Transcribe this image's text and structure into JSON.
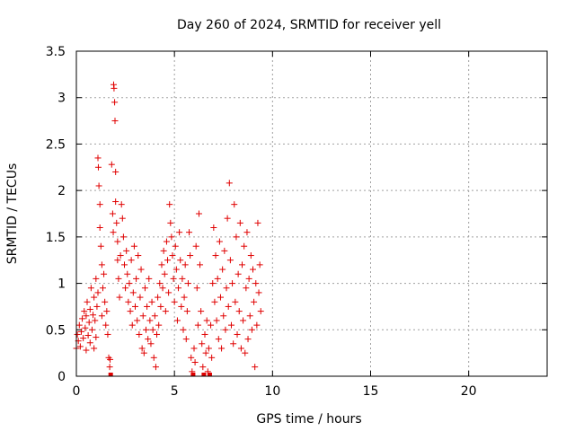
{
  "chart_data": {
    "type": "scatter",
    "title": "Day 260 of 2024, SRMTID for receiver yell",
    "xlabel": "GPS time / hours",
    "ylabel": "SRMTID / TECUs",
    "xlim": [
      0,
      24
    ],
    "ylim": [
      0,
      3.5
    ],
    "xticks": [
      0,
      5,
      10,
      15,
      20
    ],
    "yticks": [
      0,
      0.5,
      1,
      1.5,
      2,
      2.5,
      3,
      3.5
    ],
    "xtick_labels": [
      "0",
      "5",
      "10",
      "15",
      "20"
    ],
    "ytick_labels": [
      "0",
      "0.5",
      "1",
      "1.5",
      "2",
      "2.5",
      "3",
      "3.5"
    ],
    "grid": true,
    "marker": "plus",
    "color": "#e00000",
    "series": [
      {
        "name": "SRMTID",
        "points": [
          [
            0.0,
            0.3
          ],
          [
            0.05,
            0.45
          ],
          [
            0.1,
            0.38
          ],
          [
            0.15,
            0.55
          ],
          [
            0.2,
            0.32
          ],
          [
            0.25,
            0.48
          ],
          [
            0.3,
            0.62
          ],
          [
            0.35,
            0.41
          ],
          [
            0.4,
            0.7
          ],
          [
            0.45,
            0.52
          ],
          [
            0.5,
            0.28
          ],
          [
            0.5,
            0.65
          ],
          [
            0.55,
            0.8
          ],
          [
            0.6,
            0.44
          ],
          [
            0.65,
            0.58
          ],
          [
            0.7,
            0.36
          ],
          [
            0.7,
            0.72
          ],
          [
            0.75,
            0.95
          ],
          [
            0.8,
            0.5
          ],
          [
            0.85,
            0.66
          ],
          [
            0.9,
            0.3
          ],
          [
            0.9,
            0.85
          ],
          [
            0.95,
            0.6
          ],
          [
            1.0,
            1.05
          ],
          [
            1.0,
            0.42
          ],
          [
            1.05,
            0.75
          ],
          [
            1.1,
            0.9
          ],
          [
            1.1,
            2.35
          ],
          [
            1.12,
            2.25
          ],
          [
            1.15,
            2.05
          ],
          [
            1.2,
            1.85
          ],
          [
            1.2,
            1.6
          ],
          [
            1.25,
            1.4
          ],
          [
            1.3,
            1.2
          ],
          [
            1.3,
            0.65
          ],
          [
            1.35,
            0.95
          ],
          [
            1.4,
            1.1
          ],
          [
            1.45,
            0.8
          ],
          [
            1.5,
            0.55
          ],
          [
            1.55,
            0.7
          ],
          [
            1.6,
            0.45
          ],
          [
            1.65,
            0.2
          ],
          [
            1.7,
            0.1
          ],
          [
            1.72,
            0.18
          ],
          [
            1.75,
            0.0
          ],
          [
            1.8,
            2.28
          ],
          [
            1.85,
            1.75
          ],
          [
            1.88,
            1.55
          ],
          [
            1.9,
            3.14
          ],
          [
            1.92,
            3.1
          ],
          [
            1.95,
            2.95
          ],
          [
            1.97,
            2.75
          ],
          [
            2.0,
            2.2
          ],
          [
            2.0,
            1.88
          ],
          [
            2.05,
            1.65
          ],
          [
            2.1,
            1.45
          ],
          [
            2.1,
            1.25
          ],
          [
            2.15,
            1.05
          ],
          [
            2.2,
            0.85
          ],
          [
            2.25,
            1.3
          ],
          [
            2.3,
            1.85
          ],
          [
            2.35,
            1.7
          ],
          [
            2.4,
            1.5
          ],
          [
            2.45,
            1.2
          ],
          [
            2.5,
            0.95
          ],
          [
            2.55,
            1.35
          ],
          [
            2.6,
            1.1
          ],
          [
            2.65,
            0.8
          ],
          [
            2.7,
            1.0
          ],
          [
            2.75,
            0.7
          ],
          [
            2.8,
            1.25
          ],
          [
            2.85,
            0.55
          ],
          [
            2.9,
            0.9
          ],
          [
            2.95,
            1.4
          ],
          [
            3.0,
            0.75
          ],
          [
            3.05,
            1.05
          ],
          [
            3.1,
            0.6
          ],
          [
            3.15,
            1.3
          ],
          [
            3.2,
            0.45
          ],
          [
            3.25,
            0.85
          ],
          [
            3.3,
            1.15
          ],
          [
            3.35,
            0.3
          ],
          [
            3.4,
            0.65
          ],
          [
            3.45,
            0.25
          ],
          [
            3.5,
            0.95
          ],
          [
            3.55,
            0.5
          ],
          [
            3.6,
            0.75
          ],
          [
            3.65,
            0.4
          ],
          [
            3.7,
            1.05
          ],
          [
            3.75,
            0.6
          ],
          [
            3.8,
            0.35
          ],
          [
            3.85,
            0.8
          ],
          [
            3.9,
            0.5
          ],
          [
            3.95,
            0.2
          ],
          [
            4.0,
            0.65
          ],
          [
            4.05,
            0.1
          ],
          [
            4.1,
            0.45
          ],
          [
            4.15,
            0.85
          ],
          [
            4.2,
            0.55
          ],
          [
            4.25,
            1.0
          ],
          [
            4.3,
            0.75
          ],
          [
            4.35,
            1.2
          ],
          [
            4.4,
            0.95
          ],
          [
            4.45,
            1.35
          ],
          [
            4.5,
            1.1
          ],
          [
            4.55,
            0.7
          ],
          [
            4.6,
            1.45
          ],
          [
            4.65,
            1.25
          ],
          [
            4.7,
            0.9
          ],
          [
            4.75,
            1.85
          ],
          [
            4.8,
            1.65
          ],
          [
            4.85,
            1.5
          ],
          [
            4.9,
            1.3
          ],
          [
            4.95,
            1.05
          ],
          [
            5.0,
            0.8
          ],
          [
            5.05,
            1.4
          ],
          [
            5.1,
            1.15
          ],
          [
            5.15,
            0.6
          ],
          [
            5.2,
            0.95
          ],
          [
            5.25,
            1.55
          ],
          [
            5.3,
            1.25
          ],
          [
            5.35,
            0.75
          ],
          [
            5.4,
            1.05
          ],
          [
            5.45,
            0.5
          ],
          [
            5.5,
            0.85
          ],
          [
            5.55,
            1.2
          ],
          [
            5.6,
            0.4
          ],
          [
            5.65,
            0.7
          ],
          [
            5.7,
            1.0
          ],
          [
            5.75,
            1.55
          ],
          [
            5.8,
            1.3
          ],
          [
            5.85,
            0.2
          ],
          [
            5.9,
            0.05
          ],
          [
            5.95,
            0.0
          ],
          [
            6.0,
            0.3
          ],
          [
            6.05,
            0.15
          ],
          [
            6.1,
            1.4
          ],
          [
            6.15,
            0.95
          ],
          [
            6.2,
            0.55
          ],
          [
            6.25,
            1.75
          ],
          [
            6.3,
            1.2
          ],
          [
            6.35,
            0.7
          ],
          [
            6.4,
            0.35
          ],
          [
            6.45,
            0.1
          ],
          [
            6.5,
            0.0
          ],
          [
            6.55,
            0.45
          ],
          [
            6.6,
            0.25
          ],
          [
            6.65,
            0.6
          ],
          [
            6.7,
            0.05
          ],
          [
            6.75,
            0.3
          ],
          [
            6.8,
            0.0
          ],
          [
            6.85,
            0.55
          ],
          [
            6.9,
            0.2
          ],
          [
            6.95,
            1.0
          ],
          [
            7.0,
            1.6
          ],
          [
            7.05,
            0.8
          ],
          [
            7.1,
            1.3
          ],
          [
            7.15,
            0.6
          ],
          [
            7.2,
            1.05
          ],
          [
            7.25,
            0.4
          ],
          [
            7.3,
            1.45
          ],
          [
            7.35,
            0.85
          ],
          [
            7.4,
            0.3
          ],
          [
            7.45,
            1.15
          ],
          [
            7.5,
            0.65
          ],
          [
            7.55,
            1.35
          ],
          [
            7.6,
            0.5
          ],
          [
            7.65,
            0.95
          ],
          [
            7.7,
            1.7
          ],
          [
            7.75,
            0.75
          ],
          [
            7.8,
            2.08
          ],
          [
            7.85,
            1.25
          ],
          [
            7.9,
            0.55
          ],
          [
            7.95,
            1.0
          ],
          [
            8.0,
            0.35
          ],
          [
            8.05,
            1.85
          ],
          [
            8.1,
            0.8
          ],
          [
            8.15,
            1.5
          ],
          [
            8.2,
            0.45
          ],
          [
            8.25,
            1.1
          ],
          [
            8.3,
            0.7
          ],
          [
            8.35,
            1.65
          ],
          [
            8.4,
            0.3
          ],
          [
            8.45,
            1.2
          ],
          [
            8.5,
            0.6
          ],
          [
            8.55,
            1.4
          ],
          [
            8.6,
            0.25
          ],
          [
            8.65,
            0.95
          ],
          [
            8.7,
            1.55
          ],
          [
            8.75,
            0.4
          ],
          [
            8.8,
            1.05
          ],
          [
            8.85,
            0.65
          ],
          [
            8.9,
            1.3
          ],
          [
            8.95,
            0.5
          ],
          [
            9.0,
            1.15
          ],
          [
            9.05,
            0.8
          ],
          [
            9.1,
            0.1
          ],
          [
            9.15,
            1.0
          ],
          [
            9.2,
            0.55
          ],
          [
            9.25,
            1.65
          ],
          [
            9.3,
            0.9
          ],
          [
            9.35,
            1.2
          ],
          [
            9.4,
            0.7
          ]
        ]
      }
    ]
  }
}
